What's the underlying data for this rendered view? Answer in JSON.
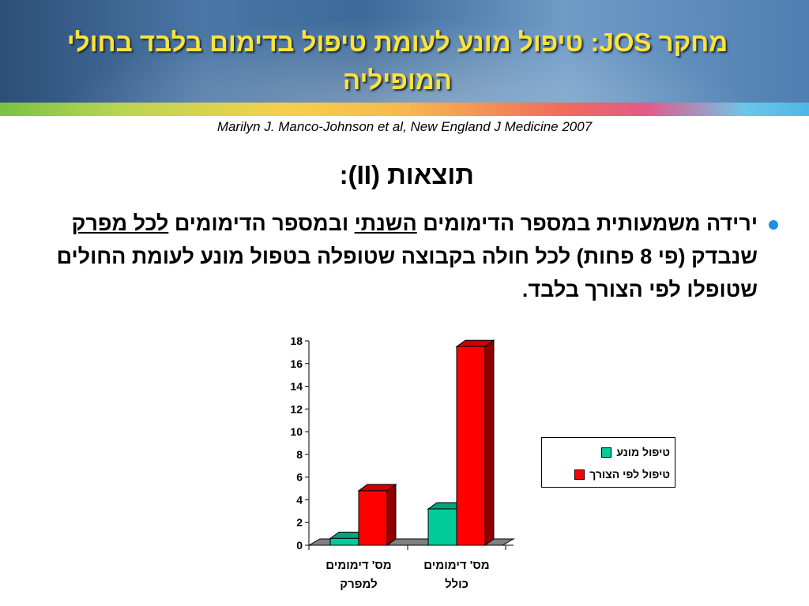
{
  "header": {
    "title": "מחקר JOS: טיפול מונע לעומת טיפול בדימום בלבד בחולי  המופיליה",
    "citation": "Marilyn J. Manco-Johnson et al, New England J Medicine 2007"
  },
  "section": {
    "subtitle": "תוצאות (II):"
  },
  "bullet": {
    "text_part1": "ירידה משמעותית במספר הדימומים ",
    "text_underline1": "השנתי",
    "text_part2": " ובמספר הדימומים ",
    "text_underline2": "לכל מפרק",
    "text_part3": " שנבדק (פי 8 פחות) לכל חולה בקבוצה שטופלה בטפול מונע לעומת החולים שטופלו לפי הצורך בלבד."
  },
  "colors": {
    "accent_title": "#ffe23a",
    "bullet": "#1f8fe5"
  },
  "chart_data": {
    "type": "bar",
    "categories": [
      "מס' דימומים למפרק",
      "מס' דימומים כולל"
    ],
    "category_lines": [
      [
        "מס' דימומים",
        "למפרק"
      ],
      [
        "מס' דימומים",
        "כולל"
      ]
    ],
    "series": [
      {
        "name": "טיפול מונע",
        "values": [
          0.6,
          3.2
        ],
        "color": "#00cc99"
      },
      {
        "name": "טיפול לפי הצורך",
        "values": [
          4.8,
          17.5
        ],
        "color": "#ff0000"
      }
    ],
    "yticks": [
      "0",
      "2",
      "4",
      "6",
      "8",
      "10",
      "12",
      "14",
      "16",
      "18"
    ],
    "ylim": [
      0,
      18
    ],
    "legend_position": "right",
    "style": "3d"
  }
}
